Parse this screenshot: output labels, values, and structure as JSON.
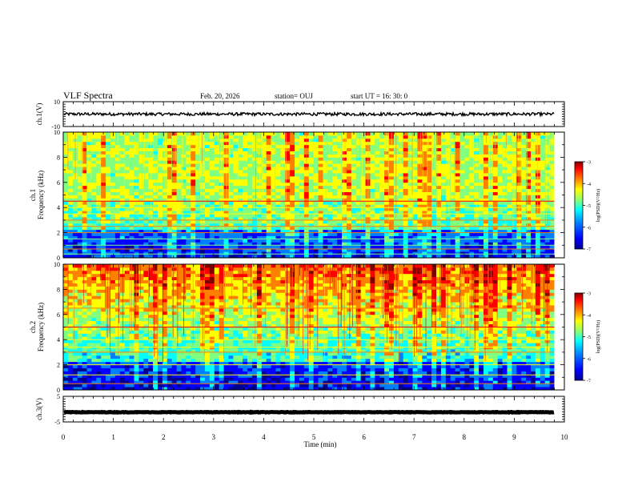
{
  "header": {
    "title": "VLF Spectra",
    "date": "Feb. 20, 2026",
    "station": "station= OUJ",
    "start": "start  UT =   16: 30: 0"
  },
  "chart_data": [
    {
      "type": "line",
      "id": "ch1-waveform",
      "ylabel": "ch.1(V)",
      "ylim": [
        -10,
        10
      ],
      "yticks": [
        "10",
        "-10"
      ],
      "xlim": [
        0,
        10
      ],
      "description_values": {
        "mean": 0,
        "amplitude": 1.2
      }
    },
    {
      "type": "heatmap",
      "id": "ch1-spectrogram",
      "ylabel": "ch.1 Frequency (kHz)",
      "ylim": [
        0,
        10
      ],
      "yticks": [
        "0",
        "2",
        "4",
        "6",
        "8",
        "10"
      ],
      "xlim": [
        0,
        10
      ],
      "data_end_min": 9.8,
      "colorbar": {
        "label": "log(PSD)(V²/Hz)",
        "ticks": [
          "-3",
          "-4",
          "-5",
          "-6",
          "-7"
        ],
        "range": [
          -7,
          -3
        ]
      },
      "bands_khz": [
        0.3,
        0.7,
        1.0,
        1.5,
        2.0,
        2.5,
        3.0,
        3.5,
        4.0,
        4.5
      ]
    },
    {
      "type": "heatmap",
      "id": "ch2-spectrogram",
      "ylabel": "ch.2 Frequency (kHz)",
      "ylim": [
        0,
        10
      ],
      "yticks": [
        "0",
        "2",
        "4",
        "6",
        "8",
        "10"
      ],
      "xlim": [
        0,
        10
      ],
      "data_end_min": 9.8,
      "colorbar": {
        "label": "log(PSD)(V²/Hz)",
        "ticks": [
          "-3",
          "-4",
          "-5",
          "-6",
          "-7"
        ],
        "range": [
          -7,
          -3
        ]
      },
      "bands_khz": [
        0.5,
        1.2,
        2.0,
        3.0,
        3.4,
        4.0,
        5.0,
        6.5
      ]
    },
    {
      "type": "line",
      "id": "ch3-waveform",
      "ylabel": "ch.3(V)",
      "ylim": [
        -5,
        5
      ],
      "yticks": [
        "5",
        "-5"
      ],
      "xlim": [
        0,
        10
      ],
      "description_values": {
        "mean": -1.2,
        "amplitude": 0.1
      }
    }
  ],
  "xaxis": {
    "label": "Time  (min)",
    "ticks": [
      "0",
      "1",
      "2",
      "3",
      "4",
      "5",
      "6",
      "7",
      "8",
      "9",
      "10"
    ]
  },
  "colors": {
    "scale": [
      "#00008f",
      "#0000ff",
      "#0080ff",
      "#00ffff",
      "#80ff80",
      "#ffff00",
      "#ff8000",
      "#ff0000",
      "#800000"
    ]
  }
}
